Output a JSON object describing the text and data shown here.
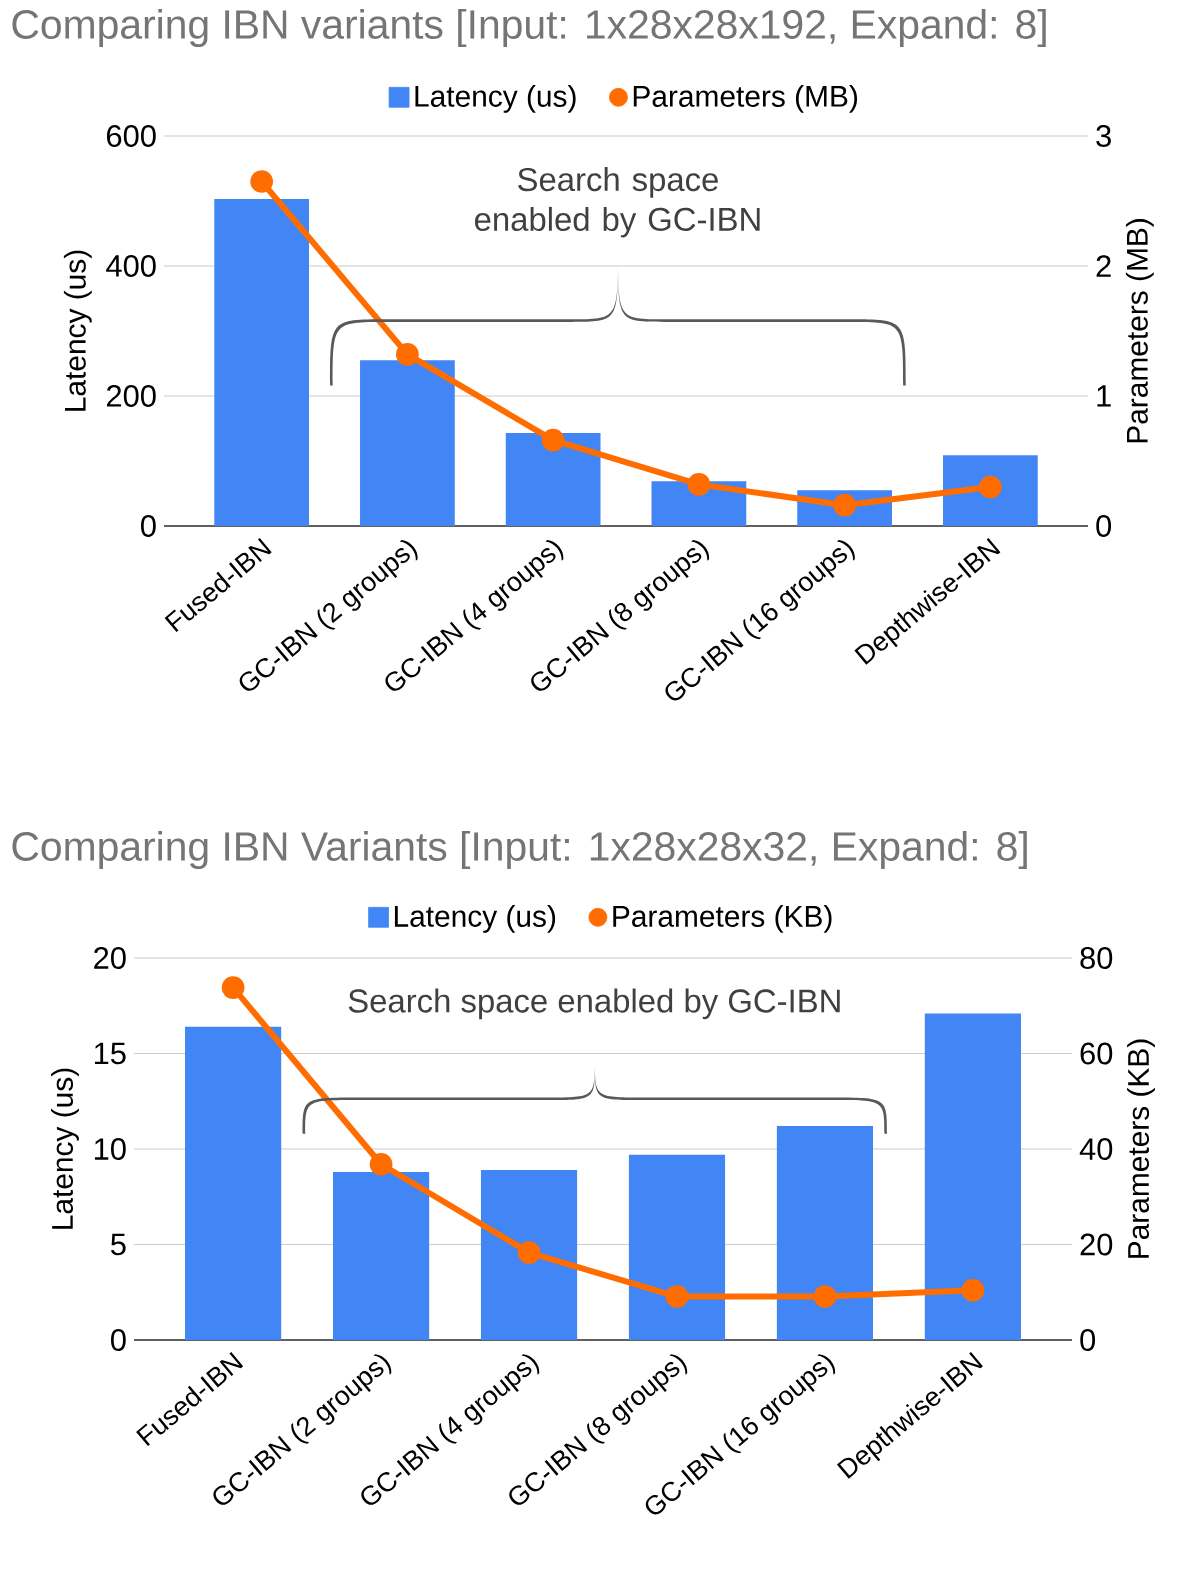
{
  "chart_data": [
    {
      "type": "bar",
      "title": "Comparing IBN variants [Input: 1x28x28x192, Expand: 8]",
      "ylabel": "Latency (us)",
      "y2label": "Parameters (MB)",
      "categories": [
        "Fused-IBN",
        "GC-IBN (2 groups)",
        "GC-IBN (4 groups)",
        "GC-IBN (8 groups)",
        "GC-IBN (16 groups)",
        "Depthwise-IBN"
      ],
      "series": [
        {
          "name": "Latency (us)",
          "color": "#4285f4",
          "values": [
            503,
            255,
            143,
            69,
            55,
            109
          ]
        },
        {
          "name": "Parameters (MB)",
          "type": "line",
          "axis": "y2",
          "color": "#ff6d01",
          "marker": "circle",
          "values": [
            2.65,
            1.32,
            0.66,
            0.32,
            0.16,
            0.3
          ]
        }
      ],
      "ylim": [
        0,
        600
      ],
      "yticks": [
        0,
        200,
        400,
        600
      ],
      "y2lim": [
        0,
        3
      ],
      "y2ticks": [
        0,
        1,
        2,
        3
      ],
      "grid": "y",
      "legend": "top",
      "annotations": [
        "Search space enabled by GC-IBN"
      ]
    },
    {
      "type": "bar",
      "title": "Comparing IBN Variants [Input: 1x28x28x32, Expand: 8]",
      "ylabel": "Latency (us)",
      "y2label": "Parameters (KB)",
      "categories": [
        "Fused-IBN",
        "GC-IBN (2 groups)",
        "GC-IBN (4 groups)",
        "GC-IBN (8 groups)",
        "GC-IBN (16 groups)",
        "Depthwise-IBN"
      ],
      "series": [
        {
          "name": "Latency (us)",
          "color": "#4285f4",
          "values": [
            16.4,
            8.8,
            8.9,
            9.7,
            11.2,
            17.1
          ]
        },
        {
          "name": "Parameters (KB)",
          "type": "line",
          "axis": "y2",
          "color": "#ff6d01",
          "marker": "circle",
          "values": [
            73.8,
            36.8,
            18.3,
            9.1,
            9.1,
            10.4
          ]
        }
      ],
      "ylim": [
        0,
        20
      ],
      "yticks": [
        0,
        5,
        10,
        15,
        20
      ],
      "y2lim": [
        0,
        80
      ],
      "y2ticks": [
        0,
        20,
        40,
        60,
        80
      ],
      "grid": "y",
      "legend": "top",
      "annotations": [
        "Search space enabled by GC-IBN"
      ]
    }
  ]
}
